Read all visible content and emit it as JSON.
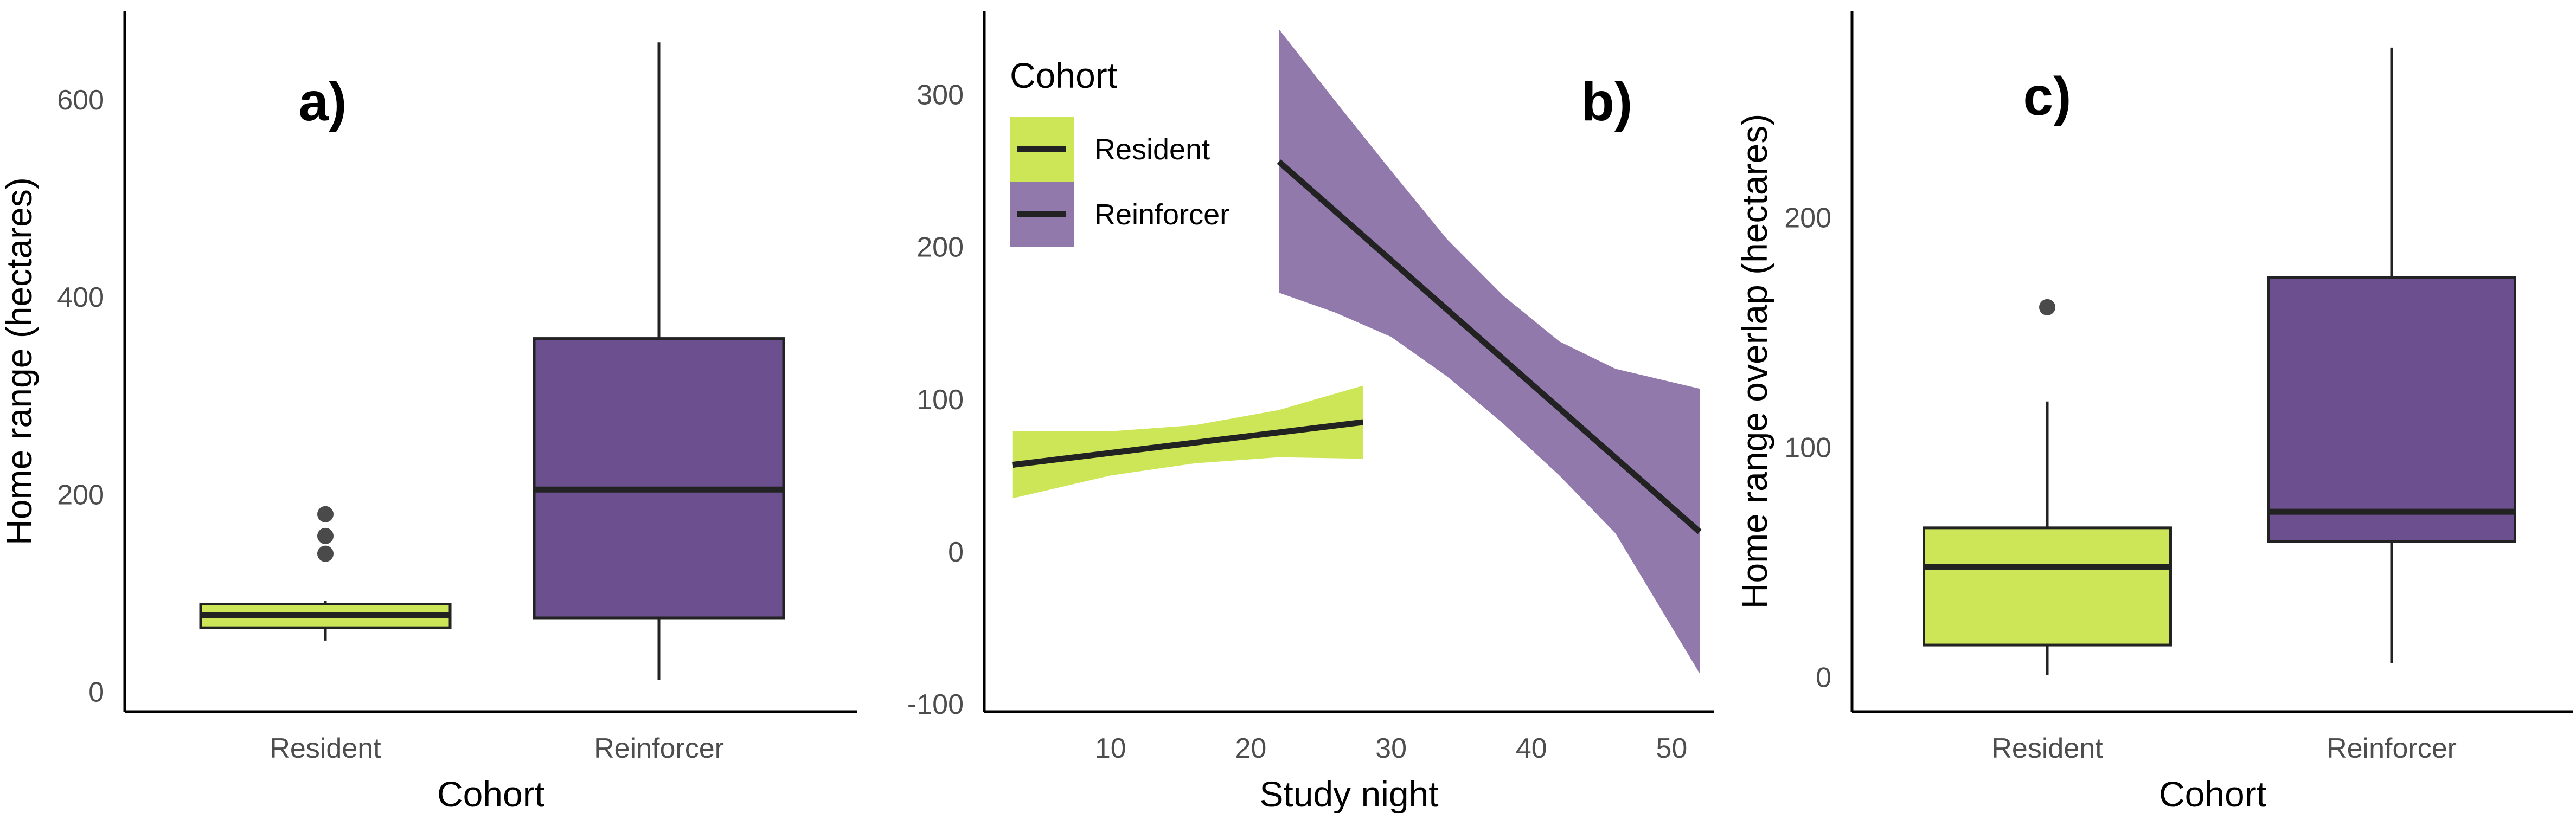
{
  "colors": {
    "resident": "#cde657",
    "reinforcer": "#6b4f8e",
    "reinforcer_band": "#9179ac",
    "line": "#222222",
    "axis": "#000000"
  },
  "chart_data": [
    {
      "type": "box",
      "panel_label": "a)",
      "xlabel": "Cohort",
      "ylabel": "Home range (hectares)",
      "categories": [
        "Resident",
        "Reinforcer"
      ],
      "ylim": [
        -20,
        690
      ],
      "yticks": [
        0,
        200,
        400,
        600
      ],
      "boxes": [
        {
          "category": "Resident",
          "whisker_low": 52,
          "q1": 65,
          "median": 78,
          "q3": 89,
          "whisker_high": 92,
          "outliers": [
            140,
            158,
            180
          ]
        },
        {
          "category": "Reinforcer",
          "whisker_low": 12,
          "q1": 75,
          "median": 205,
          "q3": 358,
          "whisker_high": 658,
          "outliers": []
        }
      ]
    },
    {
      "type": "line",
      "panel_label": "b)",
      "xlabel": "Study night",
      "ylabel": "",
      "legend": {
        "title": "Cohort",
        "entries": [
          "Resident",
          "Reinforcer"
        ],
        "position": "top-left"
      },
      "xlim": [
        1,
        53
      ],
      "ylim": [
        -105,
        355
      ],
      "xticks": [
        10,
        20,
        30,
        40,
        50
      ],
      "yticks": [
        -100,
        0,
        100,
        200,
        300
      ],
      "series": [
        {
          "name": "Resident",
          "x": [
            3,
            28
          ],
          "fit": [
            57,
            85
          ],
          "band_x": [
            3,
            10,
            16,
            22,
            28
          ],
          "band_low": [
            35,
            50,
            58,
            62,
            61
          ],
          "band_high": [
            79,
            79,
            83,
            93,
            109
          ]
        },
        {
          "name": "Reinforcer",
          "x": [
            22,
            52
          ],
          "fit": [
            256,
            13
          ],
          "band_x": [
            22,
            26,
            30,
            34,
            38,
            42,
            46,
            52
          ],
          "band_low": [
            170,
            157,
            141,
            115,
            84,
            50,
            12,
            -80
          ],
          "band_high": [
            343,
            296,
            250,
            205,
            168,
            138,
            120,
            107
          ]
        }
      ]
    },
    {
      "type": "box",
      "panel_label": "c)",
      "xlabel": "Cohort",
      "ylabel": "Home range overlap (hectares)",
      "categories": [
        "Resident",
        "Reinforcer"
      ],
      "ylim": [
        -15,
        290
      ],
      "yticks": [
        0,
        100,
        200
      ],
      "boxes": [
        {
          "category": "Resident",
          "whisker_low": 1,
          "q1": 14,
          "median": 48,
          "q3": 65,
          "whisker_high": 120,
          "outliers": [
            161
          ]
        },
        {
          "category": "Reinforcer",
          "whisker_low": 6,
          "q1": 59,
          "median": 72,
          "q3": 174,
          "whisker_high": 274,
          "outliers": []
        }
      ]
    }
  ]
}
